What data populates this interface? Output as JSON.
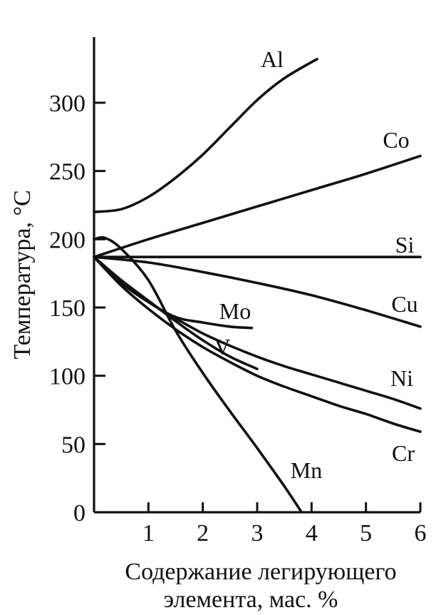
{
  "chart_data": {
    "type": "line",
    "title": "",
    "xlabel": [
      "Содержание легирующего",
      "элемента, мас. %"
    ],
    "ylabel": "Температура, °C",
    "xlim": [
      0,
      6
    ],
    "ylim": [
      0,
      340
    ],
    "xticks": [
      1,
      2,
      3,
      4,
      5,
      6
    ],
    "yticks": [
      0,
      50,
      100,
      150,
      200,
      250,
      300
    ],
    "grid": false,
    "series": [
      {
        "name": "Al",
        "x": [
          0,
          0.5,
          1,
          1.5,
          2,
          2.5,
          3,
          3.5,
          4.1
        ],
        "y": [
          220,
          222,
          231,
          245,
          262,
          282,
          302,
          318,
          332
        ]
      },
      {
        "name": "Co",
        "x": [
          0,
          1,
          2,
          3,
          4,
          5,
          6
        ],
        "y": [
          187,
          200,
          212,
          224,
          236,
          248,
          261
        ]
      },
      {
        "name": "Si",
        "x": [
          0,
          6
        ],
        "y": [
          187,
          187
        ]
      },
      {
        "name": "Cu",
        "x": [
          0,
          1,
          2,
          3,
          4,
          5,
          6
        ],
        "y": [
          187,
          183,
          176,
          168,
          159,
          148,
          136
        ]
      },
      {
        "name": "Mo",
        "x": [
          0,
          0.5,
          1,
          1.5,
          2,
          2.5,
          2.9
        ],
        "y": [
          187,
          168,
          154,
          143,
          139,
          136,
          135
        ]
      },
      {
        "name": "V",
        "x": [
          0,
          0.5,
          1,
          1.5,
          2,
          2.5,
          3
        ],
        "y": [
          187,
          170,
          155,
          140,
          126,
          114,
          105
        ]
      },
      {
        "name": "Ni",
        "x": [
          0,
          0.5,
          1,
          1.5,
          2,
          2.5,
          3,
          3.5,
          4,
          4.5,
          5,
          5.5,
          6
        ],
        "y": [
          187,
          168,
          154,
          142,
          131,
          122,
          114,
          107,
          101,
          95,
          89,
          83,
          76
        ]
      },
      {
        "name": "Cr",
        "x": [
          0,
          0.5,
          1,
          1.5,
          2,
          2.5,
          3,
          3.5,
          4,
          4.5,
          5,
          5.5,
          6
        ],
        "y": [
          187,
          166,
          149,
          134,
          121,
          110,
          100,
          92,
          85,
          78,
          72,
          65,
          59
        ]
      },
      {
        "name": "Mn",
        "x": [
          0,
          0.2,
          0.5,
          1,
          1.5,
          2,
          2.5,
          3,
          3.5,
          3.8
        ],
        "y": [
          200,
          201,
          193,
          170,
          133,
          102,
          74,
          47,
          19,
          1
        ]
      }
    ]
  }
}
